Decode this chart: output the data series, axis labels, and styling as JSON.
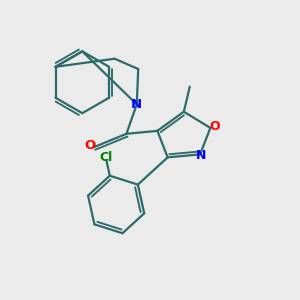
{
  "bg_color": "#ebebeb",
  "bond_color": "#2d6b6b",
  "N_color": "#0000ff",
  "O_color": "#ff0000",
  "Cl_color": "#008000",
  "line_width": 1.6,
  "figsize": [
    3.0,
    3.0
  ],
  "dpi": 100,
  "xlim": [
    0,
    10
  ],
  "ylim": [
    0,
    10
  ]
}
